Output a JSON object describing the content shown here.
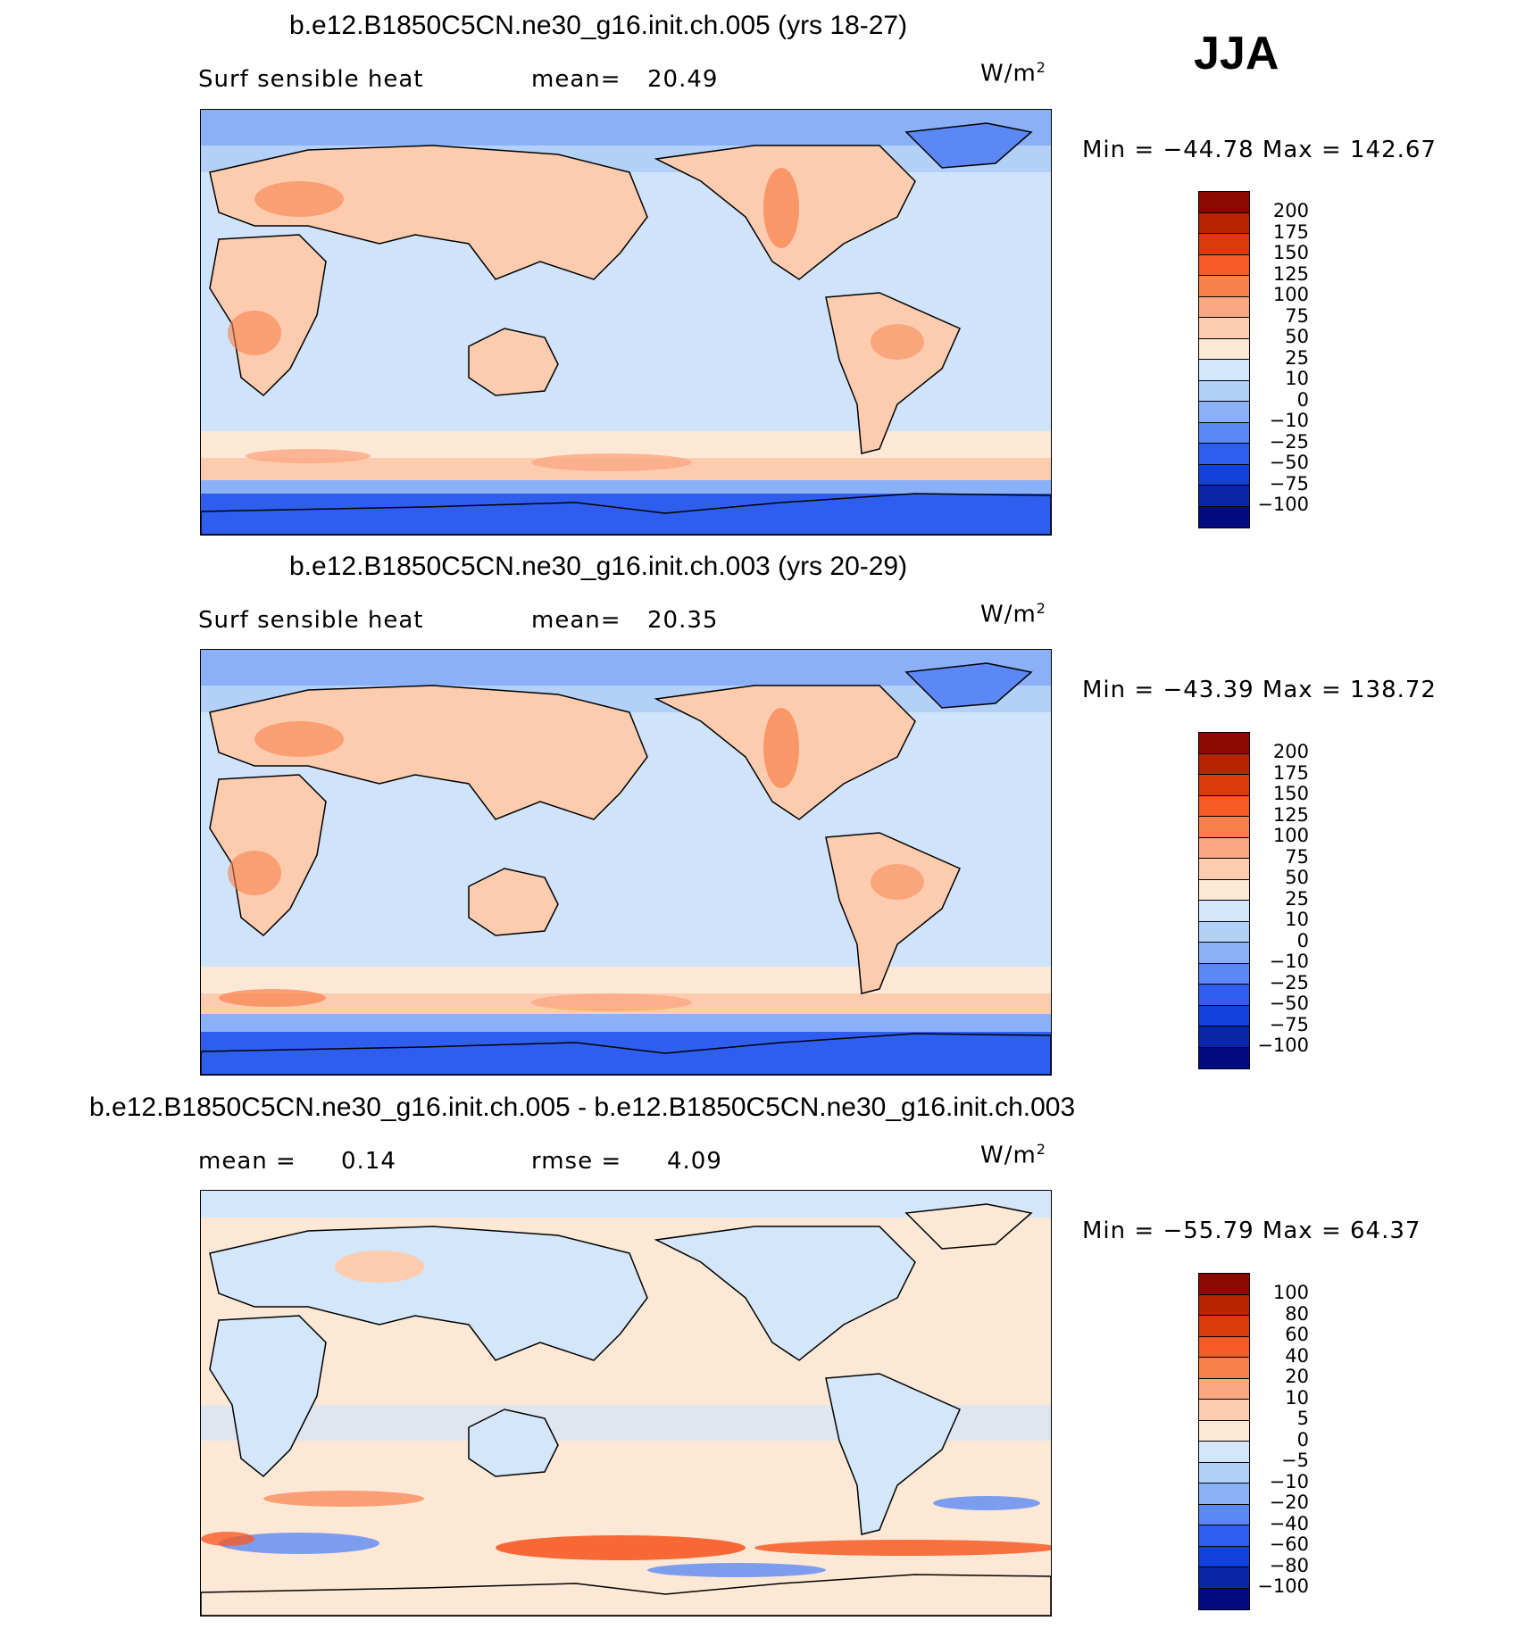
{
  "season": "JJA",
  "units_base": "W/m",
  "units_exp": "2",
  "panels": [
    {
      "title": "b.e12.B1850C5CN.ne30_g16.init.ch.005 (yrs 18-27)",
      "left_label": "Surf sensible heat",
      "right_label": "mean=",
      "right_value": "20.49",
      "minmax": "Min = −44.78 Max = 142.67"
    },
    {
      "title": "b.e12.B1850C5CN.ne30_g16.init.ch.003 (yrs 20-29)",
      "left_label": "Surf sensible heat",
      "right_label": "mean=",
      "right_value": "20.35",
      "minmax": "Min = −43.39 Max = 138.72"
    },
    {
      "title": "b.e12.B1850C5CN.ne30_g16.init.ch.005 - b.e12.B1850C5CN.ne30_g16.init.ch.003",
      "left_label": "mean =",
      "left_value": "0.14",
      "right_label": "rmse =",
      "right_value": "4.09",
      "minmax": "Min = −55.79 Max =   64.37"
    }
  ],
  "colorbars": {
    "abs": {
      "colors": [
        "#8b0a00",
        "#b82400",
        "#dd3a0c",
        "#f75a25",
        "#f8804c",
        "#fba783",
        "#fdccaf",
        "#fde8d6",
        "#d3e6fa",
        "#b3d1f8",
        "#8ab0f7",
        "#5b88f4",
        "#2f5eef",
        "#1240dc",
        "#0a26a8",
        "#020c80"
      ],
      "labels": [
        "200",
        "175",
        "150",
        "125",
        "100",
        "75",
        "50",
        "25",
        "10",
        "0",
        "−10",
        "−25",
        "−50",
        "−75",
        "−100"
      ]
    },
    "diff": {
      "colors": [
        "#8b0a00",
        "#b82400",
        "#dd3a0c",
        "#f75a25",
        "#f8804c",
        "#fba783",
        "#fdccaf",
        "#fde8d6",
        "#d3e6fa",
        "#b3d1f8",
        "#8ab0f7",
        "#5b88f4",
        "#2f5eef",
        "#1240dc",
        "#0a26a8",
        "#020c80"
      ],
      "labels": [
        "100",
        "80",
        "60",
        "40",
        "20",
        "10",
        "5",
        "0",
        "−5",
        "−10",
        "−20",
        "−40",
        "−60",
        "−80",
        "−100"
      ]
    }
  },
  "chart_data": [
    {
      "type": "heatmap",
      "title": "b.e12.B1850C5CN.ne30_g16.init.ch.005 (yrs 18-27)",
      "variable": "Surf sensible heat",
      "units": "W/m2",
      "mean": 20.49,
      "min": -44.78,
      "max": 142.67,
      "contour_levels": [
        -100,
        -75,
        -50,
        -25,
        -10,
        0,
        10,
        25,
        50,
        75,
        100,
        125,
        150,
        175,
        200
      ]
    },
    {
      "type": "heatmap",
      "title": "b.e12.B1850C5CN.ne30_g16.init.ch.003 (yrs 20-29)",
      "variable": "Surf sensible heat",
      "units": "W/m2",
      "mean": 20.35,
      "min": -43.39,
      "max": 138.72,
      "contour_levels": [
        -100,
        -75,
        -50,
        -25,
        -10,
        0,
        10,
        25,
        50,
        75,
        100,
        125,
        150,
        175,
        200
      ]
    },
    {
      "type": "heatmap",
      "title": "b.e12.B1850C5CN.ne30_g16.init.ch.005 - b.e12.B1850C5CN.ne30_g16.init.ch.003",
      "units": "W/m2",
      "mean": 0.14,
      "rmse": 4.09,
      "min": -55.79,
      "max": 64.37,
      "contour_levels": [
        -100,
        -80,
        -60,
        -40,
        -20,
        -10,
        -5,
        0,
        5,
        10,
        20,
        40,
        60,
        80,
        100
      ]
    }
  ]
}
